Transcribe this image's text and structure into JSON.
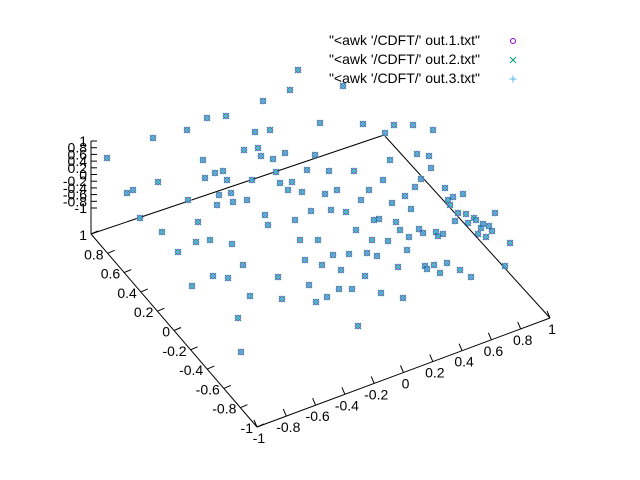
{
  "chart_data": {
    "type": "scatter",
    "title": "",
    "legend_placement": "top-right",
    "grid": false,
    "axes": {
      "x": {
        "range": [
          -1,
          1
        ],
        "ticks": [
          "-1",
          "-0.8",
          "-0.6",
          "-0.4",
          "-0.2",
          "0",
          "0.2",
          "0.4",
          "0.6",
          "0.8",
          "1"
        ]
      },
      "y": {
        "range": [
          -1,
          1
        ],
        "ticks": [
          "-1",
          "-0.8",
          "-0.6",
          "-0.4",
          "-0.2",
          "0",
          "0.2",
          "0.4",
          "0.6",
          "0.8",
          "1"
        ]
      },
      "z": {
        "range": [
          -1,
          1
        ],
        "ticks": [
          "-1",
          "-0.8",
          "-0.6",
          "-0.4",
          "-0.2",
          "0",
          "0.2",
          "0.4",
          "0.6",
          "0.8",
          "1"
        ]
      }
    },
    "series": [
      {
        "name": "\"<awk '/CDFT/' out.1.txt\"",
        "marker": "circle",
        "color": "#9400d3"
      },
      {
        "name": "\"<awk '/CDFT/' out.2.txt\"",
        "marker": "cross",
        "color": "#009e73"
      },
      {
        "name": "\"<awk '/CDFT/' out.3.txt\"",
        "marker": "plus",
        "color": "#56b4e9"
      }
    ],
    "points": [
      [
        107,
        158
      ],
      [
        127,
        193
      ],
      [
        133,
        190
      ],
      [
        140,
        218
      ],
      [
        153,
        138
      ],
      [
        158,
        182
      ],
      [
        162,
        232
      ],
      [
        178,
        252
      ],
      [
        187,
        130
      ],
      [
        188,
        200
      ],
      [
        192,
        286
      ],
      [
        196,
        242
      ],
      [
        198,
        222
      ],
      [
        203,
        160
      ],
      [
        205,
        178
      ],
      [
        207,
        118
      ],
      [
        210,
        240
      ],
      [
        213,
        276
      ],
      [
        215,
        173
      ],
      [
        217,
        205
      ],
      [
        219,
        195
      ],
      [
        223,
        171
      ],
      [
        226,
        116
      ],
      [
        228,
        278
      ],
      [
        231,
        193
      ],
      [
        233,
        202
      ],
      [
        238,
        318
      ],
      [
        241,
        352
      ],
      [
        244,
        150
      ],
      [
        247,
        200
      ],
      [
        250,
        296
      ],
      [
        252,
        180
      ],
      [
        255,
        132
      ],
      [
        258,
        148
      ],
      [
        261,
        156
      ],
      [
        263,
        101
      ],
      [
        265,
        215
      ],
      [
        268,
        225
      ],
      [
        270,
        130
      ],
      [
        273,
        159
      ],
      [
        276,
        172
      ],
      [
        278,
        277
      ],
      [
        280,
        183
      ],
      [
        282,
        299
      ],
      [
        285,
        153
      ],
      [
        288,
        190
      ],
      [
        290,
        90
      ],
      [
        292,
        182
      ],
      [
        295,
        220
      ],
      [
        298,
        70
      ],
      [
        300,
        240
      ],
      [
        302,
        192
      ],
      [
        305,
        260
      ],
      [
        307,
        170
      ],
      [
        309,
        285
      ],
      [
        311,
        211
      ],
      [
        315,
        155
      ],
      [
        316,
        302
      ],
      [
        318,
        240
      ],
      [
        320,
        123
      ],
      [
        322,
        265
      ],
      [
        325,
        194
      ],
      [
        327,
        297
      ],
      [
        329,
        171
      ],
      [
        331,
        210
      ],
      [
        333,
        255
      ],
      [
        337,
        190
      ],
      [
        339,
        289
      ],
      [
        341,
        270
      ],
      [
        343,
        86
      ],
      [
        346,
        212
      ],
      [
        349,
        254
      ],
      [
        352,
        289
      ],
      [
        354,
        171
      ],
      [
        356,
        230
      ],
      [
        358,
        326
      ],
      [
        361,
        200
      ],
      [
        363,
        124
      ],
      [
        365,
        276
      ],
      [
        367,
        253
      ],
      [
        369,
        190
      ],
      [
        372,
        240
      ],
      [
        374,
        220
      ],
      [
        377,
        256
      ],
      [
        379,
        219
      ],
      [
        381,
        293
      ],
      [
        383,
        180
      ],
      [
        385,
        133
      ],
      [
        388,
        241
      ],
      [
        390,
        160
      ],
      [
        392,
        203
      ],
      [
        394,
        125
      ],
      [
        396,
        222
      ],
      [
        398,
        267
      ],
      [
        400,
        230
      ],
      [
        403,
        298
      ],
      [
        405,
        196
      ],
      [
        407,
        250
      ],
      [
        409,
        237
      ],
      [
        411,
        209
      ],
      [
        413,
        125
      ],
      [
        415,
        187
      ],
      [
        417,
        154
      ],
      [
        419,
        229
      ],
      [
        421,
        179
      ],
      [
        423,
        233
      ],
      [
        425,
        266
      ],
      [
        427,
        269
      ],
      [
        429,
        156
      ],
      [
        431,
        168
      ],
      [
        433,
        130
      ],
      [
        434,
        265
      ],
      [
        436,
        232
      ],
      [
        438,
        236
      ],
      [
        440,
        273
      ],
      [
        443,
        234
      ],
      [
        445,
        188
      ],
      [
        447,
        263
      ],
      [
        448,
        200
      ],
      [
        450,
        205
      ],
      [
        453,
        197
      ],
      [
        455,
        221
      ],
      [
        458,
        213
      ],
      [
        460,
        270
      ],
      [
        463,
        194
      ],
      [
        466,
        214
      ],
      [
        468,
        223
      ],
      [
        471,
        277
      ],
      [
        474,
        218
      ],
      [
        476,
        220
      ],
      [
        478,
        234
      ],
      [
        481,
        228
      ],
      [
        483,
        224
      ],
      [
        486,
        237
      ],
      [
        489,
        226
      ],
      [
        492,
        231
      ],
      [
        495,
        213
      ],
      [
        505,
        266
      ],
      [
        510,
        243
      ],
      [
        227,
        180
      ],
      [
        232,
        244
      ],
      [
        243,
        265
      ]
    ]
  }
}
